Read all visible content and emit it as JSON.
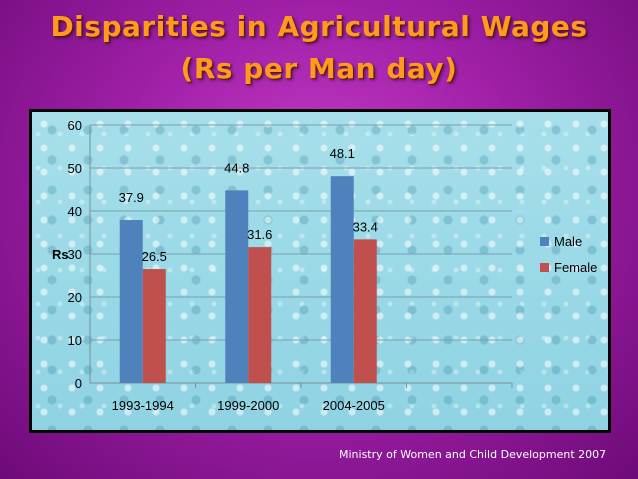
{
  "title_line1": "Disparities in Agricultural Wages",
  "title_line2": "(Rs per Man day)",
  "footer": "Ministry of Women and Child Development 2007",
  "colors": {
    "male": "#4f81bd",
    "female": "#c0504d"
  },
  "chart_data": {
    "type": "bar",
    "categories": [
      "1993-1994",
      "1999-2000",
      "2004-2005"
    ],
    "series": [
      {
        "name": "Male",
        "values": [
          37.9,
          44.8,
          48.1
        ]
      },
      {
        "name": "Female",
        "values": [
          26.5,
          31.6,
          33.4
        ]
      }
    ],
    "ylabel": "Rs",
    "ylim": [
      0,
      60
    ],
    "yticks": [
      0,
      10,
      20,
      30,
      40,
      50,
      60
    ],
    "grid": true,
    "legend_position": "right"
  }
}
